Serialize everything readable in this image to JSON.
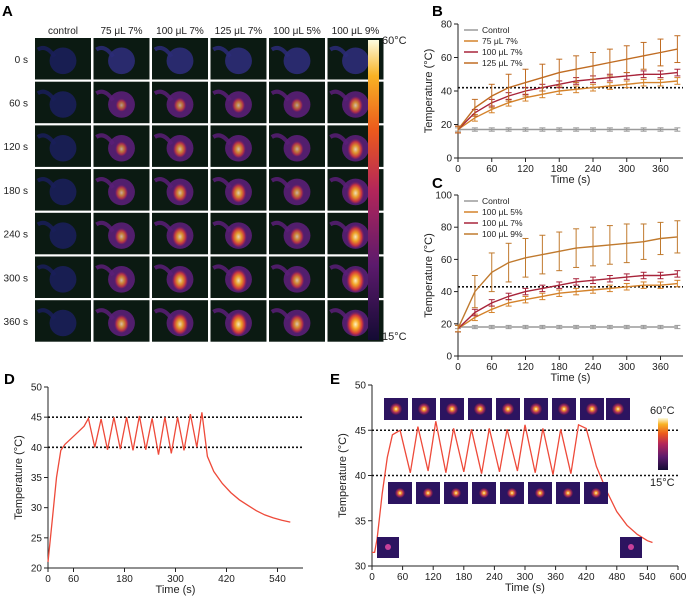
{
  "colors": {
    "control": "#9a9a9a",
    "c75": "#d4822a",
    "c100": "#a8243a",
    "c125": "#c06c22",
    "d5": "#d4822a",
    "d7": "#a8243a",
    "d9": "#c07a2e",
    "cycle": "#ee4a3a"
  },
  "panelA": {
    "label": "A",
    "columns": [
      "control",
      "75 μL 7%",
      "100 μL 7%",
      "125 μL 7%",
      "100 μL 5%",
      "100 μL 9%"
    ],
    "rows": [
      "0 s",
      "60 s",
      "120 s",
      "180 s",
      "240 s",
      "300 s",
      "360 s"
    ],
    "colorbar_top": "60°C",
    "colorbar_bottom": "15°C",
    "intensity": [
      [
        0.0,
        0.05,
        0.05,
        0.05,
        0.05,
        0.05
      ],
      [
        0.0,
        0.3,
        0.4,
        0.45,
        0.35,
        0.6
      ],
      [
        0.0,
        0.4,
        0.55,
        0.6,
        0.45,
        0.75
      ],
      [
        0.0,
        0.45,
        0.6,
        0.7,
        0.5,
        0.85
      ],
      [
        0.0,
        0.5,
        0.7,
        0.8,
        0.55,
        0.9
      ],
      [
        0.0,
        0.55,
        0.75,
        0.85,
        0.6,
        0.95
      ],
      [
        0.0,
        0.6,
        0.8,
        0.9,
        0.65,
        1.0
      ]
    ]
  },
  "chart_data": [
    {
      "panel": "B",
      "type": "line",
      "xlabel": "Time (s)",
      "ylabel": "Temperature (°C)",
      "xlim": [
        0,
        400
      ],
      "ylim": [
        0,
        80
      ],
      "xticks": [
        0,
        60,
        120,
        180,
        240,
        300,
        360
      ],
      "yticks": [
        0,
        20,
        40,
        60,
        80
      ],
      "reference_line": 42,
      "legend": "top-left",
      "x": [
        0,
        30,
        60,
        90,
        120,
        150,
        180,
        210,
        240,
        270,
        300,
        330,
        360,
        390
      ],
      "series": [
        {
          "name": "Control",
          "key": "control",
          "values": [
            17,
            17,
            17,
            17,
            17,
            17,
            17,
            17,
            17,
            17,
            17,
            17,
            17,
            17
          ],
          "err": [
            1,
            1,
            1,
            1,
            1,
            1,
            1,
            1,
            1,
            1,
            1,
            1,
            1,
            1
          ]
        },
        {
          "name": "75 μL 7%",
          "key": "c75",
          "values": [
            17,
            24,
            29,
            33,
            36,
            38,
            40,
            41,
            42,
            43,
            44,
            45,
            45,
            46
          ],
          "err": [
            2,
            2,
            2,
            2,
            2,
            2,
            2,
            2,
            2,
            2,
            2,
            2,
            2,
            2
          ]
        },
        {
          "name": "100 μL 7%",
          "key": "c100",
          "values": [
            17,
            27,
            33,
            37,
            40,
            42,
            44,
            46,
            47,
            48,
            49,
            50,
            50,
            51
          ],
          "err": [
            2,
            2,
            2,
            2,
            2,
            2,
            2,
            2,
            2,
            2,
            2,
            2,
            2,
            2
          ]
        },
        {
          "name": "125 μL 7%",
          "key": "c125",
          "values": [
            17,
            30,
            37,
            42,
            45,
            48,
            51,
            53,
            55,
            57,
            59,
            61,
            63,
            65
          ],
          "err": [
            2,
            5,
            7,
            8,
            8,
            8,
            8,
            8,
            8,
            8,
            8,
            8,
            8,
            8
          ]
        }
      ]
    },
    {
      "panel": "C",
      "type": "line",
      "xlabel": "Time (s)",
      "ylabel": "Temperature (°C)",
      "xlim": [
        0,
        400
      ],
      "ylim": [
        0,
        100
      ],
      "xticks": [
        0,
        60,
        120,
        180,
        240,
        300,
        360
      ],
      "yticks": [
        0,
        20,
        40,
        60,
        80,
        100
      ],
      "reference_line": 43,
      "legend": "top-left",
      "x": [
        0,
        30,
        60,
        90,
        120,
        150,
        180,
        210,
        240,
        270,
        300,
        330,
        360,
        390
      ],
      "series": [
        {
          "name": "Control",
          "key": "control",
          "values": [
            18,
            18,
            18,
            18,
            18,
            18,
            18,
            18,
            18,
            18,
            18,
            18,
            18,
            18
          ],
          "err": [
            1,
            1,
            1,
            1,
            1,
            1,
            1,
            1,
            1,
            1,
            1,
            1,
            1,
            1
          ]
        },
        {
          "name": "100 μL 5%",
          "key": "d5",
          "values": [
            17,
            24,
            29,
            33,
            35,
            37,
            39,
            40,
            41,
            42,
            43,
            44,
            44,
            45
          ],
          "err": [
            2,
            2,
            2,
            2,
            2,
            2,
            2,
            2,
            2,
            2,
            2,
            2,
            2,
            2
          ]
        },
        {
          "name": "100 μL 7%",
          "key": "d7",
          "values": [
            17,
            27,
            33,
            37,
            40,
            42,
            44,
            46,
            47,
            48,
            49,
            50,
            50,
            51
          ],
          "err": [
            2,
            2,
            2,
            2,
            2,
            2,
            2,
            2,
            2,
            2,
            2,
            2,
            2,
            2
          ]
        },
        {
          "name": "100 μL 9%",
          "key": "d9",
          "values": [
            17,
            40,
            52,
            58,
            61,
            63,
            65,
            67,
            68,
            69,
            70,
            71,
            73,
            74
          ],
          "err": [
            2,
            10,
            12,
            12,
            12,
            12,
            12,
            12,
            12,
            12,
            12,
            11,
            10,
            10
          ]
        }
      ]
    },
    {
      "panel": "D",
      "type": "line",
      "xlabel": "Time (s)",
      "ylabel": "Temperature (°C)",
      "xlim": [
        0,
        600
      ],
      "ylim": [
        20,
        50
      ],
      "xticks": [
        0,
        60,
        180,
        300,
        420,
        540
      ],
      "yticks": [
        20,
        25,
        30,
        35,
        40,
        45,
        50
      ],
      "reference_lines": [
        45,
        40
      ],
      "x": [
        0,
        10,
        20,
        30,
        40,
        55,
        70,
        85,
        95,
        110,
        125,
        140,
        155,
        170,
        185,
        200,
        215,
        230,
        245,
        260,
        275,
        290,
        305,
        320,
        335,
        350,
        362,
        375,
        390,
        410,
        430,
        450,
        470,
        490,
        510,
        530,
        550,
        570
      ],
      "values": [
        21,
        28,
        35,
        39.5,
        40.5,
        41.5,
        42.5,
        43.5,
        44.8,
        40,
        44.7,
        39.6,
        45,
        39.7,
        45,
        39.5,
        45.2,
        39.6,
        44.8,
        38.8,
        45,
        39,
        45,
        39.5,
        45.5,
        40,
        45.8,
        38.5,
        36,
        34,
        32.5,
        31.3,
        30.4,
        29.5,
        28.8,
        28.3,
        27.9,
        27.6
      ]
    },
    {
      "panel": "E",
      "type": "line",
      "xlabel": "Time (s)",
      "ylabel": "Temperature (°C)",
      "xlim": [
        0,
        600
      ],
      "ylim": [
        30,
        50
      ],
      "xticks": [
        0,
        60,
        120,
        180,
        240,
        300,
        360,
        420,
        480,
        540,
        600
      ],
      "yticks": [
        30,
        35,
        40,
        45,
        50
      ],
      "reference_lines": [
        45,
        40
      ],
      "colorbar_top": "60°C",
      "colorbar_bottom": "15°C",
      "x": [
        0,
        5,
        10,
        20,
        30,
        40,
        55,
        75,
        90,
        110,
        125,
        145,
        160,
        180,
        195,
        215,
        230,
        250,
        265,
        285,
        300,
        320,
        335,
        355,
        370,
        390,
        405,
        420,
        440,
        460,
        480,
        500,
        520,
        540,
        550
      ],
      "values": [
        31.5,
        31.5,
        33,
        38,
        42,
        44.5,
        45,
        40.3,
        45.4,
        40.5,
        46,
        40.3,
        45.2,
        40.4,
        45.1,
        40.2,
        45.2,
        40.4,
        45.1,
        40.5,
        45.6,
        40.3,
        45.2,
        40.1,
        45.1,
        40.2,
        45.6,
        45.2,
        41,
        38.3,
        36,
        34.5,
        33.5,
        32.8,
        32.6
      ]
    }
  ]
}
